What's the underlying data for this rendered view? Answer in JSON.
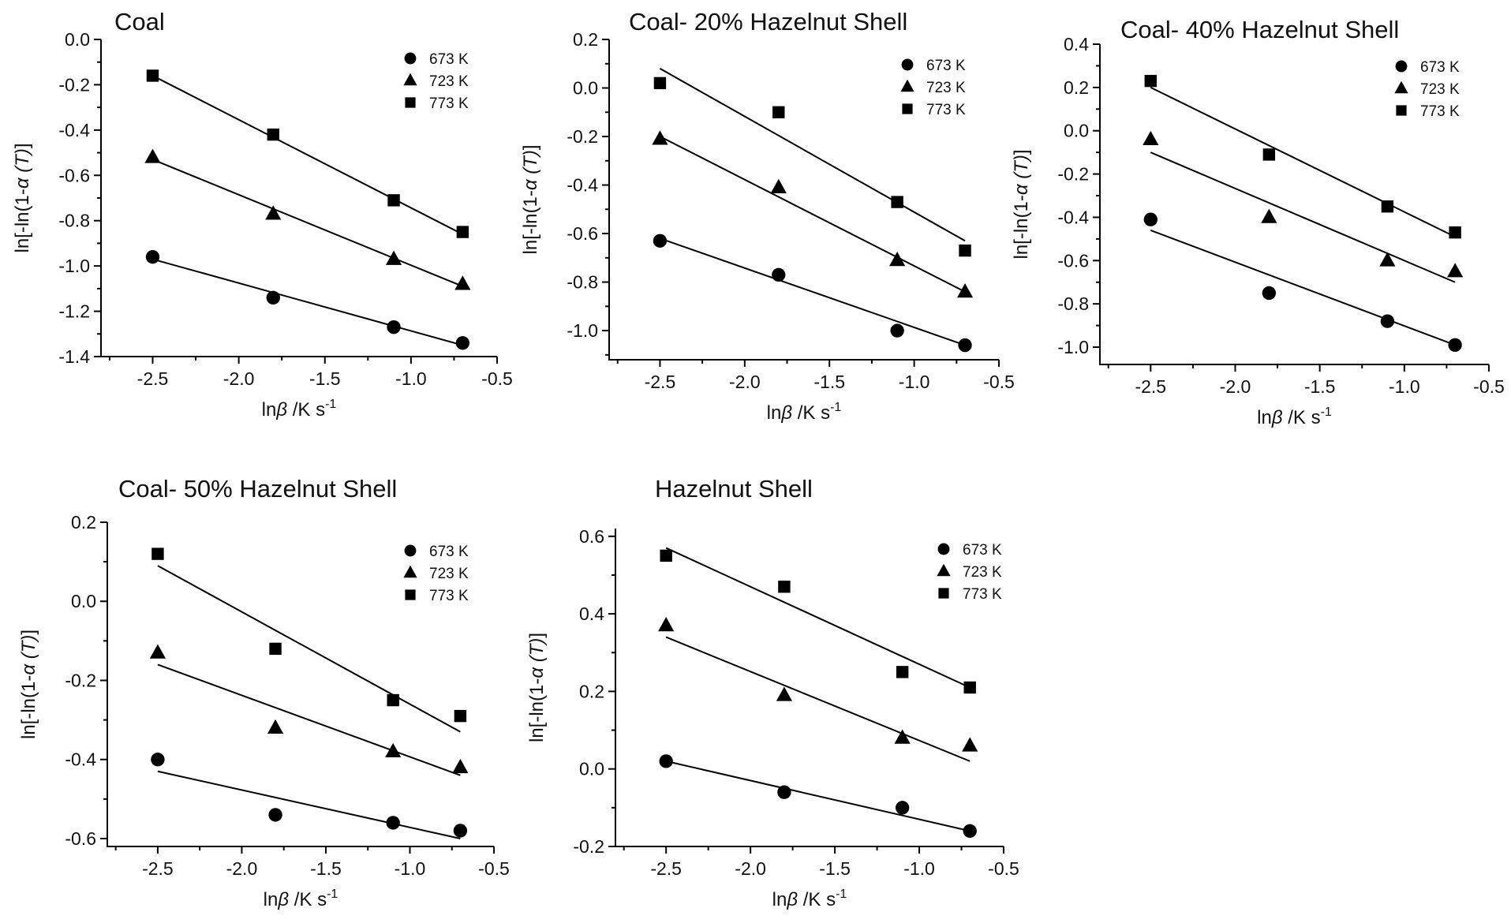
{
  "chart_data": [
    {
      "type": "scatter",
      "title": "Coal",
      "xlabel_prefix": "ln",
      "xlabel_symbol": "β",
      "xlabel_unit": " /K s",
      "xlabel_exp": "-1",
      "ylabel_prefix": "ln[-ln(1-",
      "ylabel_symbol": "α",
      "ylabel_T": "(T)",
      "ylabel_suffix": "]",
      "xlim": [
        -2.8,
        -0.5
      ],
      "ylim": [
        -1.4,
        0.0
      ],
      "xticks": [
        -2.5,
        -2.0,
        -1.5,
        -1.0,
        -0.5
      ],
      "xtick_labels": [
        "-2.5",
        "-2.0",
        "-1.5",
        "-1.0",
        "-0.5"
      ],
      "yticks": [
        -1.4,
        -1.2,
        -1.0,
        -0.8,
        -0.6,
        -0.4,
        -0.2,
        0.0
      ],
      "ytick_labels": [
        "-1.4",
        "-1.2",
        "-1.0",
        "-0.8",
        "-0.6",
        "-0.4",
        "-0.2",
        "0.0"
      ],
      "legend": "top-right",
      "series": [
        {
          "name": "673 K",
          "marker": "circle",
          "x": [
            -2.5,
            -1.8,
            -1.1,
            -0.7
          ],
          "y": [
            -0.96,
            -1.14,
            -1.27,
            -1.34
          ],
          "fit": [
            [
              -2.5,
              -0.97
            ],
            [
              -0.7,
              -1.35
            ]
          ]
        },
        {
          "name": "723 K",
          "marker": "triangle",
          "x": [
            -2.5,
            -1.8,
            -1.1,
            -0.7
          ],
          "y": [
            -0.52,
            -0.77,
            -0.97,
            -1.08
          ],
          "fit": [
            [
              -2.5,
              -0.53
            ],
            [
              -0.7,
              -1.09
            ]
          ]
        },
        {
          "name": "773 K",
          "marker": "square",
          "x": [
            -2.5,
            -1.8,
            -1.1,
            -0.7
          ],
          "y": [
            -0.16,
            -0.42,
            -0.71,
            -0.85
          ],
          "fit": [
            [
              -2.5,
              -0.16
            ],
            [
              -0.7,
              -0.86
            ]
          ]
        }
      ]
    },
    {
      "type": "scatter",
      "title": "Coal- 20% Hazelnut Shell",
      "xlabel_prefix": "ln",
      "xlabel_symbol": "β",
      "xlabel_unit": " /K s",
      "xlabel_exp": "-1",
      "ylabel_prefix": "ln[-ln(1-",
      "ylabel_symbol": "α",
      "ylabel_T": "(T)",
      "ylabel_suffix": "]",
      "xlim": [
        -2.8,
        -0.5
      ],
      "ylim": [
        -1.12,
        0.2
      ],
      "xticks": [
        -2.5,
        -2.0,
        -1.5,
        -1.0,
        -0.5
      ],
      "xtick_labels": [
        "-2.5",
        "-2.0",
        "-1.5",
        "-1.0",
        "-0.5"
      ],
      "yticks": [
        -1.0,
        -0.8,
        -0.6,
        -0.4,
        -0.2,
        0.0,
        0.2
      ],
      "ytick_labels": [
        "-1.0",
        "-0.8",
        "-0.6",
        "-0.4",
        "-0.2",
        "0.0",
        "0.2"
      ],
      "legend": "top-right",
      "series": [
        {
          "name": "673 K",
          "marker": "circle",
          "x": [
            -2.5,
            -1.8,
            -1.1,
            -0.7
          ],
          "y": [
            -0.63,
            -0.77,
            -1.0,
            -1.06
          ],
          "fit": [
            [
              -2.5,
              -0.62
            ],
            [
              -0.7,
              -1.06
            ]
          ]
        },
        {
          "name": "723 K",
          "marker": "triangle",
          "x": [
            -2.5,
            -1.8,
            -1.1,
            -0.7
          ],
          "y": [
            -0.21,
            -0.41,
            -0.71,
            -0.84
          ],
          "fit": [
            [
              -2.5,
              -0.2
            ],
            [
              -0.7,
              -0.84
            ]
          ]
        },
        {
          "name": "773 K",
          "marker": "square",
          "x": [
            -2.5,
            -1.8,
            -1.1,
            -0.7
          ],
          "y": [
            0.02,
            -0.1,
            -0.47,
            -0.67
          ],
          "fit": [
            [
              -2.5,
              0.08
            ],
            [
              -0.7,
              -0.63
            ]
          ]
        }
      ]
    },
    {
      "type": "scatter",
      "title": "Coal- 40% Hazelnut Shell",
      "xlabel_prefix": "ln",
      "xlabel_symbol": "β",
      "xlabel_unit": " /K s",
      "xlabel_exp": "-1",
      "ylabel_prefix": "ln[-ln(1-",
      "ylabel_symbol": "α",
      "ylabel_T": "(T)",
      "ylabel_suffix": "]",
      "xlim": [
        -2.8,
        -0.5
      ],
      "ylim": [
        -1.08,
        0.4
      ],
      "xticks": [
        -2.5,
        -2.0,
        -1.5,
        -1.0,
        -0.5
      ],
      "xtick_labels": [
        "-2.5",
        "-2.0",
        "-1.5",
        "-1.0",
        "-0.5"
      ],
      "yticks": [
        -1.0,
        -0.8,
        -0.6,
        -0.4,
        -0.2,
        0.0,
        0.2,
        0.4
      ],
      "ytick_labels": [
        "-1.0",
        "-0.8",
        "-0.6",
        "-0.4",
        "-0.2",
        "0.0",
        "0.2",
        "0.4"
      ],
      "legend": "top-right",
      "series": [
        {
          "name": "673 K",
          "marker": "circle",
          "x": [
            -2.5,
            -1.8,
            -1.1,
            -0.7
          ],
          "y": [
            -0.41,
            -0.75,
            -0.88,
            -0.99
          ],
          "fit": [
            [
              -2.5,
              -0.46
            ],
            [
              -0.7,
              -0.99
            ]
          ]
        },
        {
          "name": "723 K",
          "marker": "triangle",
          "x": [
            -2.5,
            -1.8,
            -1.1,
            -0.7
          ],
          "y": [
            -0.04,
            -0.4,
            -0.6,
            -0.65
          ],
          "fit": [
            [
              -2.5,
              -0.1
            ],
            [
              -0.7,
              -0.7
            ]
          ]
        },
        {
          "name": "773 K",
          "marker": "square",
          "x": [
            -2.5,
            -1.8,
            -1.1,
            -0.7
          ],
          "y": [
            0.23,
            -0.11,
            -0.35,
            -0.47
          ],
          "fit": [
            [
              -2.5,
              0.2
            ],
            [
              -0.7,
              -0.49
            ]
          ]
        }
      ]
    },
    {
      "type": "scatter",
      "title": "Coal- 50% Hazelnut Shell",
      "xlabel_prefix": "ln",
      "xlabel_symbol": "β",
      "xlabel_unit": " /K s",
      "xlabel_exp": "-1",
      "ylabel_prefix": "ln[-ln(1-",
      "ylabel_symbol": "α",
      "ylabel_T": "(T)",
      "ylabel_suffix": "]",
      "xlim": [
        -2.8,
        -0.5
      ],
      "ylim": [
        -0.62,
        0.2
      ],
      "xticks": [
        -2.5,
        -2.0,
        -1.5,
        -1.0,
        -0.5
      ],
      "xtick_labels": [
        "-2.5",
        "-2.0",
        "-1.5",
        "-1.0",
        "-0.5"
      ],
      "yticks": [
        -0.6,
        -0.4,
        -0.2,
        0.0,
        0.2
      ],
      "ytick_labels": [
        "-0.6",
        "-0.4",
        "-0.2",
        "0.0",
        "0.2"
      ],
      "legend": "top-right",
      "series": [
        {
          "name": "673 K",
          "marker": "circle",
          "x": [
            -2.5,
            -1.8,
            -1.1,
            -0.7
          ],
          "y": [
            -0.4,
            -0.54,
            -0.56,
            -0.58
          ],
          "fit": [
            [
              -2.5,
              -0.43
            ],
            [
              -0.7,
              -0.6
            ]
          ]
        },
        {
          "name": "723 K",
          "marker": "triangle",
          "x": [
            -2.5,
            -1.8,
            -1.1,
            -0.7
          ],
          "y": [
            -0.13,
            -0.32,
            -0.38,
            -0.42
          ],
          "fit": [
            [
              -2.5,
              -0.16
            ],
            [
              -0.7,
              -0.44
            ]
          ]
        },
        {
          "name": "773 K",
          "marker": "square",
          "x": [
            -2.5,
            -1.8,
            -1.1,
            -0.7
          ],
          "y": [
            0.12,
            -0.12,
            -0.25,
            -0.29
          ],
          "fit": [
            [
              -2.5,
              0.09
            ],
            [
              -0.7,
              -0.33
            ]
          ]
        }
      ]
    },
    {
      "type": "scatter",
      "title": "Hazelnut Shell",
      "xlabel_prefix": "ln",
      "xlabel_symbol": "β",
      "xlabel_unit": " /K s",
      "xlabel_exp": "-1",
      "ylabel_prefix": "ln[-ln(1-",
      "ylabel_symbol": "α",
      "ylabel_T": "(T)",
      "ylabel_suffix": "]",
      "xlim": [
        -2.8,
        -0.5
      ],
      "ylim": [
        -0.2,
        0.62
      ],
      "xticks": [
        -2.5,
        -2.0,
        -1.5,
        -1.0,
        -0.5
      ],
      "xtick_labels": [
        "-2.5",
        "-2.0",
        "-1.5",
        "-1.0",
        "-0.5"
      ],
      "yticks": [
        -0.2,
        0.0,
        0.2,
        0.4,
        0.6
      ],
      "ytick_labels": [
        "-0.2",
        "0.0",
        "0.2",
        "0.4",
        "0.6"
      ],
      "legend": "top-right",
      "series": [
        {
          "name": "673 K",
          "marker": "circle",
          "x": [
            -2.5,
            -1.8,
            -1.1,
            -0.7
          ],
          "y": [
            0.02,
            -0.06,
            -0.1,
            -0.16
          ],
          "fit": [
            [
              -2.5,
              0.02
            ],
            [
              -0.7,
              -0.16
            ]
          ]
        },
        {
          "name": "723 K",
          "marker": "triangle",
          "x": [
            -2.5,
            -1.8,
            -1.1,
            -0.7
          ],
          "y": [
            0.37,
            0.19,
            0.08,
            0.06
          ],
          "fit": [
            [
              -2.5,
              0.34
            ],
            [
              -0.7,
              0.02
            ]
          ]
        },
        {
          "name": "773 K",
          "marker": "square",
          "x": [
            -2.5,
            -1.8,
            -1.1,
            -0.7
          ],
          "y": [
            0.55,
            0.47,
            0.25,
            0.21
          ],
          "fit": [
            [
              -2.5,
              0.57
            ],
            [
              -0.7,
              0.21
            ]
          ]
        }
      ]
    }
  ]
}
